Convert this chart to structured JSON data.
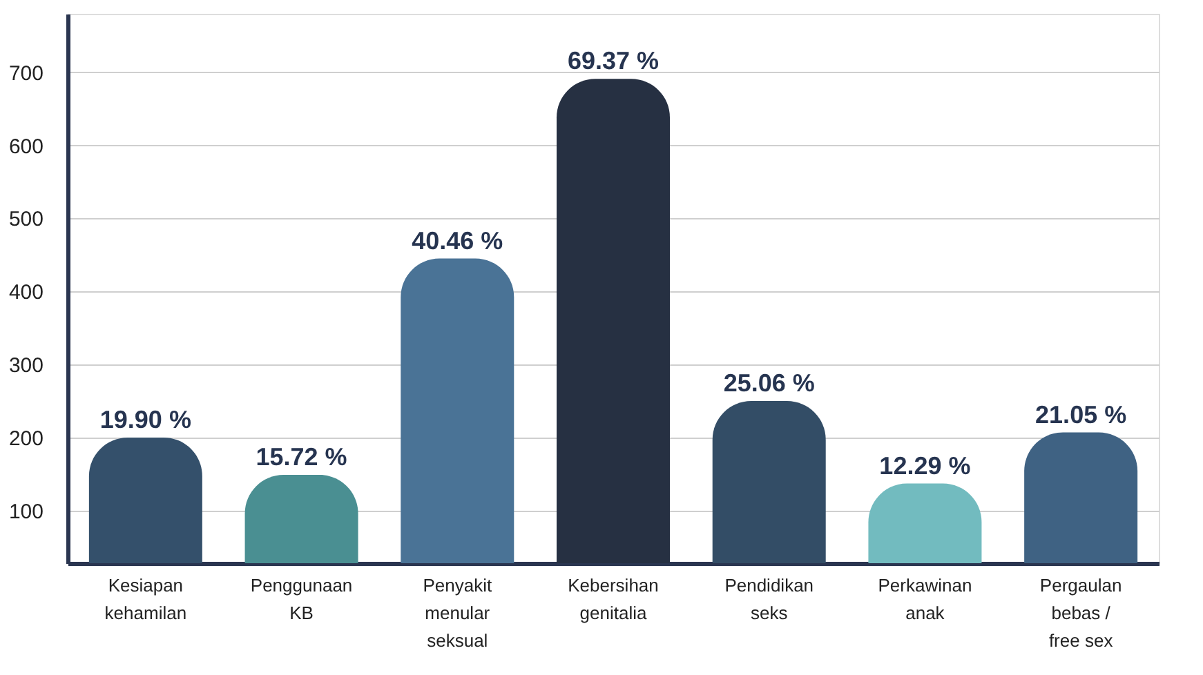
{
  "chart_data": {
    "type": "bar",
    "categories": [
      "Kesiapan kehamilan",
      "Penggunaan KB",
      "Penyakit menular seksual",
      "Kebersihan genitalia",
      "Pendidikan seks",
      "Perkawinan anak",
      "Pergaulan bebas / free sex"
    ],
    "values": [
      200,
      149,
      445,
      691,
      250,
      137,
      207
    ],
    "colors": [
      "#34506b",
      "#4a8f92",
      "#4a7396",
      "#263042",
      "#334d66",
      "#72bbbf",
      "#3f6283"
    ],
    "annotations": [
      {
        "text": "19.90 %",
        "x": "Kesiapan kehamilan",
        "y": 200
      },
      {
        "text": "15.72 %",
        "x": "Penggunaan KB",
        "y": 149
      },
      {
        "text": "40.46 %",
        "x": "Penyakit menular seksual",
        "y": 445
      },
      {
        "text": "69.37 %",
        "x": "Kebersihan genitalia",
        "y": 691
      },
      {
        "text": "25.06 %",
        "x": "Pendidikan seks",
        "y": 250
      },
      {
        "text": "12.29 %",
        "x": "Perkawinan anak",
        "y": 137
      },
      {
        "text": "21.05 %",
        "x": "Pergaulan bebas / free sex",
        "y": 207
      }
    ],
    "ylim": [
      28,
      780
    ],
    "yticks": [
      100,
      200,
      300,
      400,
      500,
      600,
      700
    ],
    "grid": "y"
  }
}
